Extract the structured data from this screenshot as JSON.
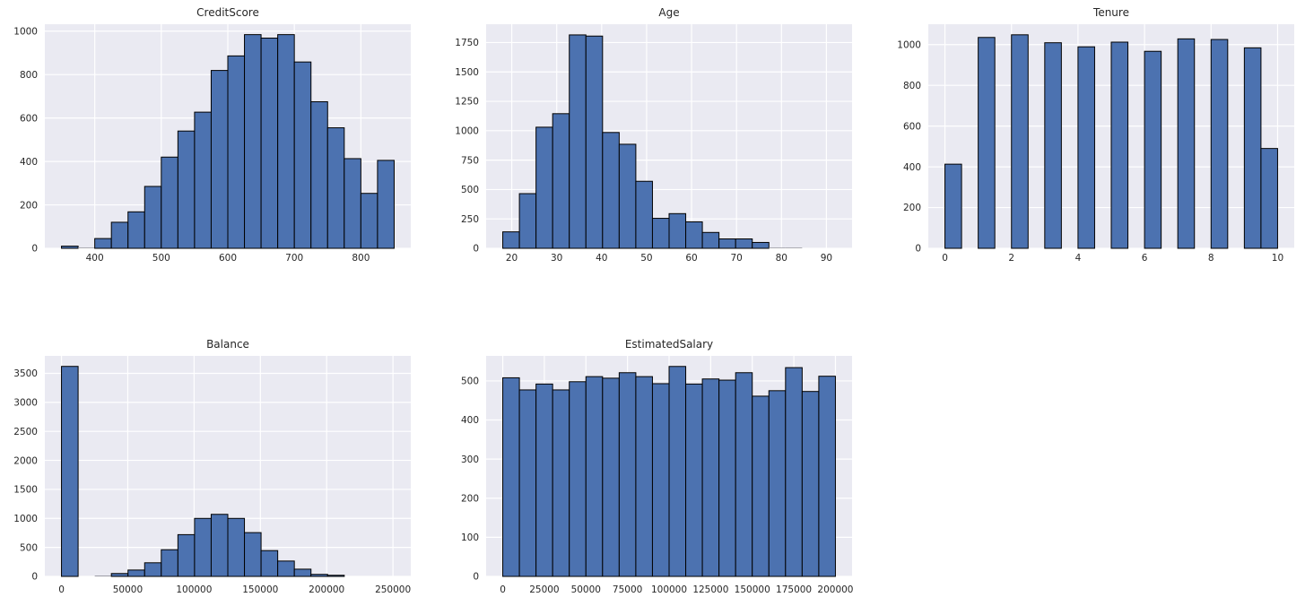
{
  "style": {
    "figure_bg": "#ffffff",
    "plot_bg": "#EAEAF2",
    "grid_color": "#ffffff",
    "bar_fill": "#4C72B0",
    "bar_edge": "#000000",
    "tiny_bar_color": "#9a9aa2",
    "text_color": "#262626"
  },
  "chart_data": [
    {
      "type": "bar",
      "subtype": "histogram",
      "title": "CreditScore",
      "xlabel": "",
      "ylabel": "",
      "bin_start": 350,
      "bin_width": 25,
      "values": [
        10,
        2,
        45,
        120,
        168,
        285,
        420,
        540,
        627,
        819,
        886,
        984,
        968,
        984,
        858,
        675,
        555,
        413,
        253,
        405
      ],
      "xlim": [
        325,
        875
      ],
      "ylim": [
        0,
        1032
      ],
      "xticks": [
        400,
        500,
        600,
        700,
        800
      ],
      "yticks": [
        0,
        200,
        400,
        600,
        800,
        1000
      ],
      "grid": true,
      "legend": false
    },
    {
      "type": "bar",
      "subtype": "histogram",
      "title": "Age",
      "xlabel": "",
      "ylabel": "",
      "bin_start": 18,
      "bin_width": 3.7,
      "values": [
        140,
        465,
        1030,
        1145,
        1815,
        1805,
        985,
        885,
        570,
        255,
        295,
        225,
        135,
        80,
        80,
        50,
        5,
        3,
        1,
        2
      ],
      "xlim": [
        14.3,
        95.7
      ],
      "ylim": [
        0,
        1906
      ],
      "xticks": [
        20,
        30,
        40,
        50,
        60,
        70,
        80,
        90
      ],
      "yticks": [
        0,
        250,
        500,
        750,
        1000,
        1250,
        1500,
        1750
      ],
      "grid": true,
      "legend": false
    },
    {
      "type": "bar",
      "subtype": "histogram",
      "title": "Tenure",
      "xlabel": "",
      "ylabel": "",
      "bin_start": 0,
      "bin_width": 0.5,
      "values": [
        413,
        0,
        1035,
        0,
        1048,
        0,
        1009,
        0,
        989,
        0,
        1012,
        0,
        967,
        0,
        1028,
        0,
        1025,
        0,
        984,
        490
      ],
      "xlim": [
        -0.5,
        10.5
      ],
      "ylim": [
        0,
        1100
      ],
      "xticks": [
        0,
        2,
        4,
        6,
        8,
        10
      ],
      "yticks": [
        0,
        200,
        400,
        600,
        800,
        1000
      ],
      "grid": true,
      "legend": false
    },
    {
      "type": "bar",
      "subtype": "histogram",
      "title": "Balance",
      "xlabel": "",
      "ylabel": "",
      "bin_start": 0,
      "bin_width": 12545,
      "values": [
        3620,
        0,
        15,
        50,
        110,
        235,
        460,
        720,
        1000,
        1070,
        1000,
        755,
        445,
        265,
        125,
        35,
        20,
        1,
        0,
        1
      ],
      "xlim": [
        -12545,
        263445
      ],
      "ylim": [
        0,
        3801
      ],
      "xticks": [
        0,
        50000,
        100000,
        150000,
        200000,
        250000
      ],
      "yticks": [
        0,
        500,
        1000,
        1500,
        2000,
        2500,
        3000,
        3500
      ],
      "grid": true,
      "legend": false
    },
    {
      "type": "bar",
      "subtype": "histogram",
      "title": "EstimatedSalary",
      "xlabel": "",
      "ylabel": "",
      "bin_start": 0,
      "bin_width": 10000,
      "values": [
        508,
        477,
        492,
        477,
        498,
        511,
        507,
        521,
        511,
        493,
        537,
        492,
        505,
        502,
        521,
        461,
        475,
        534,
        473,
        512
      ],
      "xlim": [
        -10000,
        210000
      ],
      "ylim": [
        0,
        564
      ],
      "xticks": [
        0,
        25000,
        50000,
        75000,
        100000,
        125000,
        150000,
        175000,
        200000
      ],
      "yticks": [
        0,
        100,
        200,
        300,
        400,
        500
      ],
      "grid": true,
      "legend": false
    }
  ]
}
